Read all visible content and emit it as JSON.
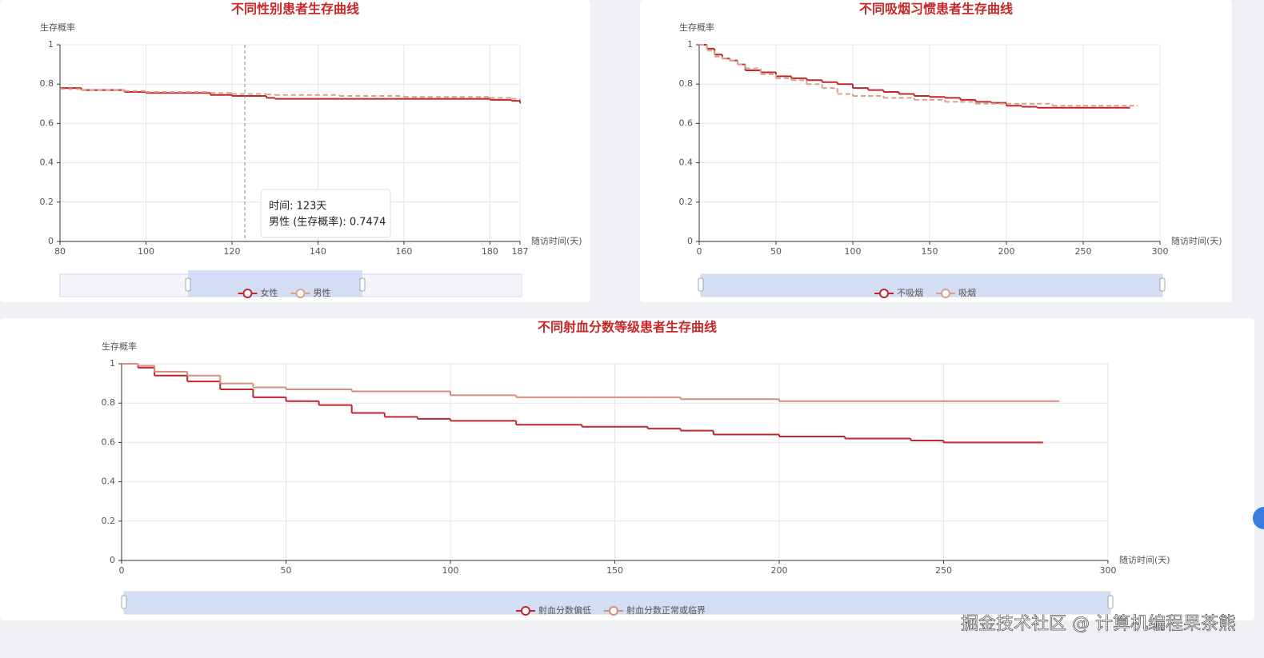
{
  "chart_data": [
    {
      "type": "line",
      "title": "不同性别患者生存曲线",
      "y_label": "生存概率",
      "x_label": "随访时间(天)",
      "x": [
        80,
        85,
        95,
        100,
        115,
        120,
        128,
        130,
        145,
        160,
        180,
        185,
        187
      ],
      "xlim": [
        80,
        187
      ],
      "xticks": [
        80,
        100,
        120,
        140,
        160,
        180,
        187
      ],
      "ylim": [
        0,
        1
      ],
      "yticks": [
        0,
        0.2,
        0.4,
        0.6,
        0.8,
        1
      ],
      "grid": true,
      "step": true,
      "series": [
        {
          "name": "女性",
          "color": "#c0272d",
          "line_style": "solid",
          "values": [
            0.78,
            0.77,
            0.76,
            0.755,
            0.745,
            0.74,
            0.73,
            0.725,
            0.725,
            0.725,
            0.72,
            0.715,
            0.705
          ]
        },
        {
          "name": "男性",
          "color": "#d9a08a",
          "line_style": "dashed",
          "values": [
            0.775,
            0.77,
            0.765,
            0.76,
            0.755,
            0.75,
            0.7474,
            0.745,
            0.74,
            0.735,
            0.73,
            0.725,
            0.72
          ]
        }
      ],
      "tooltip": {
        "x": 123,
        "text": [
          "时间: 123天",
          "男性 (生存概率): 0.7474"
        ]
      }
    },
    {
      "type": "line",
      "title": "不同吸烟习惯患者生存曲线",
      "y_label": "生存概率",
      "x_label": "随访时间(天)",
      "x": [
        0,
        5,
        10,
        15,
        20,
        25,
        30,
        40,
        50,
        60,
        70,
        80,
        90,
        100,
        110,
        120,
        130,
        140,
        150,
        160,
        170,
        180,
        190,
        200,
        210,
        220,
        230,
        240,
        250,
        260,
        270,
        280,
        285
      ],
      "xlim": [
        0,
        300
      ],
      "xticks": [
        0,
        50,
        100,
        150,
        200,
        250,
        300
      ],
      "ylim": [
        0,
        1
      ],
      "yticks": [
        0,
        0.2,
        0.4,
        0.6,
        0.8,
        1
      ],
      "grid": true,
      "step": true,
      "series": [
        {
          "name": "不吸烟",
          "color": "#c0272d",
          "line_style": "solid",
          "values": [
            1,
            0.98,
            0.95,
            0.93,
            0.92,
            0.9,
            0.87,
            0.86,
            0.84,
            0.83,
            0.82,
            0.81,
            0.8,
            0.78,
            0.77,
            0.76,
            0.75,
            0.74,
            0.735,
            0.73,
            0.72,
            0.71,
            0.705,
            0.69,
            0.685,
            0.68,
            0.68,
            0.68,
            0.68,
            0.68,
            0.68,
            0.68,
            null
          ]
        },
        {
          "name": "吸烟",
          "color": "#d9a08a",
          "line_style": "dashed",
          "values": [
            1,
            0.97,
            0.94,
            0.93,
            0.92,
            0.9,
            0.88,
            0.85,
            0.83,
            0.82,
            0.8,
            0.78,
            0.75,
            0.74,
            0.74,
            0.73,
            0.73,
            0.72,
            0.72,
            0.71,
            0.71,
            0.7,
            0.7,
            0.7,
            0.7,
            0.7,
            0.69,
            0.69,
            0.69,
            0.69,
            0.69,
            0.69,
            0.69
          ]
        }
      ]
    },
    {
      "type": "line",
      "title": "不同射血分数等级患者生存曲线",
      "y_label": "生存概率",
      "x_label": "随访时间(天)",
      "x": [
        0,
        5,
        10,
        20,
        30,
        40,
        50,
        60,
        70,
        80,
        90,
        100,
        120,
        140,
        160,
        170,
        180,
        200,
        220,
        240,
        250,
        280,
        285
      ],
      "xlim": [
        0,
        300
      ],
      "xticks": [
        0,
        50,
        100,
        150,
        200,
        250,
        300
      ],
      "ylim": [
        0,
        1
      ],
      "yticks": [
        0,
        0.2,
        0.4,
        0.6,
        0.8,
        1
      ],
      "grid": true,
      "step": true,
      "series": [
        {
          "name": "射血分数偏低",
          "color": "#c0272d",
          "line_style": "solid",
          "values": [
            1,
            0.98,
            0.94,
            0.91,
            0.87,
            0.83,
            0.81,
            0.79,
            0.75,
            0.73,
            0.72,
            0.71,
            0.69,
            0.68,
            0.67,
            0.66,
            0.64,
            0.63,
            0.62,
            0.61,
            0.6,
            0.6,
            null
          ]
        },
        {
          "name": "射血分数正常或临界",
          "color": "#d48f7c",
          "line_style": "solid",
          "values": [
            1,
            0.99,
            0.96,
            0.94,
            0.9,
            0.88,
            0.87,
            0.87,
            0.86,
            0.86,
            0.86,
            0.84,
            0.83,
            0.83,
            0.83,
            0.82,
            0.82,
            0.81,
            0.81,
            0.81,
            0.81,
            0.81,
            0.81
          ]
        }
      ]
    }
  ],
  "watermark": "掘金技术社区 @ 计算机编程果茶熊"
}
